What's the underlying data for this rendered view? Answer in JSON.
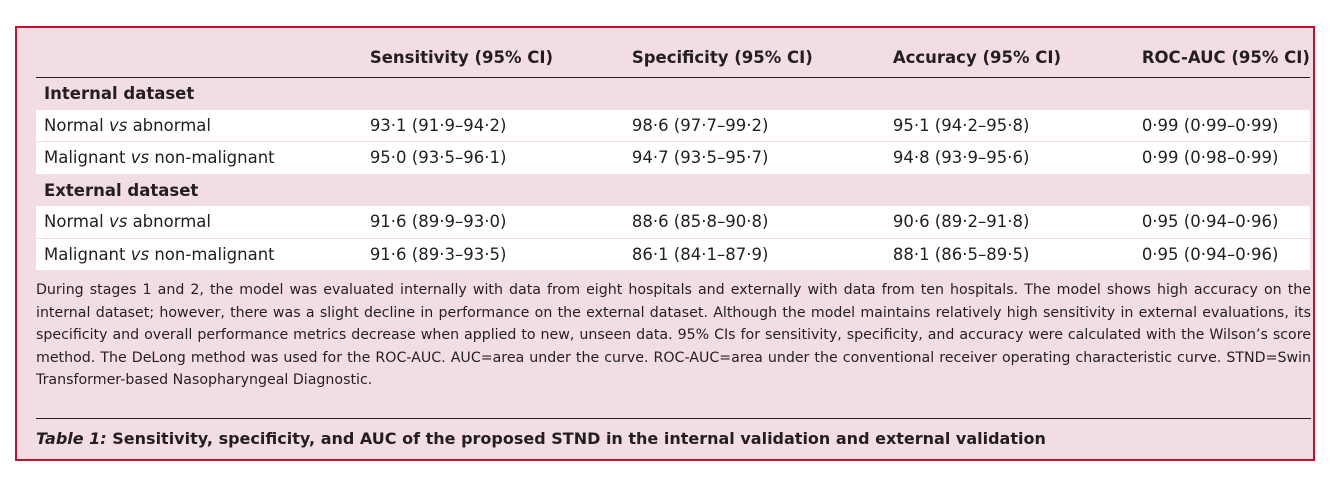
{
  "table": {
    "headers": [
      "",
      "Sensitivity (95% CI)",
      "Specificity (95% CI)",
      "Accuracy (95% CI)",
      "ROC-AUC (95% CI)"
    ],
    "sections": [
      {
        "title": "Internal dataset",
        "rows": [
          {
            "label_a": "Normal ",
            "label_vs": "vs",
            "label_b": " abnormal",
            "sensitivity": "93·1 (91·9–94·2)",
            "specificity": "98·6 (97·7–99·2)",
            "accuracy": "95·1 (94·2–95·8)",
            "roc_auc": "0·99 (0·99–0·99)"
          },
          {
            "label_a": "Malignant ",
            "label_vs": "vs",
            "label_b": " non-malignant",
            "sensitivity": "95·0 (93·5–96·1)",
            "specificity": "94·7 (93·5–95·7)",
            "accuracy": "94·8 (93·9–95·6)",
            "roc_auc": "0·99 (0·98–0·99)"
          }
        ]
      },
      {
        "title": "External dataset",
        "rows": [
          {
            "label_a": "Normal ",
            "label_vs": "vs",
            "label_b": " abnormal",
            "sensitivity": "91·6 (89·9–93·0)",
            "specificity": "88·6 (85·8–90·8)",
            "accuracy": "90·6 (89·2–91·8)",
            "roc_auc": "0·95 (0·94–0·96)"
          },
          {
            "label_a": "Malignant ",
            "label_vs": "vs",
            "label_b": " non-malignant",
            "sensitivity": "91·6 (89·3–93·5)",
            "specificity": "86·1 (84·1–87·9)",
            "accuracy": "88·1 (86·5–89·5)",
            "roc_auc": "0·95 (0·94–0·96)"
          }
        ]
      }
    ]
  },
  "footnote": "During stages 1 and 2, the model was evaluated internally with data from eight hospitals and externally with data from ten hospitals. The model shows high accuracy on the internal dataset; however, there was a slight decline in performance on the external dataset. Although the model maintains relatively high sensitivity in external evaluations, its specificity and overall performance metrics decrease when applied to new, unseen data. 95% CIs for sensitivity, specificity, and accuracy were calculated with the Wilson’s score method. The DeLong method was used for the ROC-AUC. AUC=area under the curve. ROC-AUC=area under the conventional receiver operating characteristic curve. STND=Swin Transformer-based Nasopharyngeal Diagnostic.",
  "caption": {
    "label": "Table 1:",
    "text": " Sensitivity, specificity, and AUC of the proposed STND in the internal validation and external validation"
  },
  "colors": {
    "border": "#c8102e",
    "panel_background": "#f2dde2",
    "row_background": "#ffffff",
    "text": "#231f20"
  }
}
